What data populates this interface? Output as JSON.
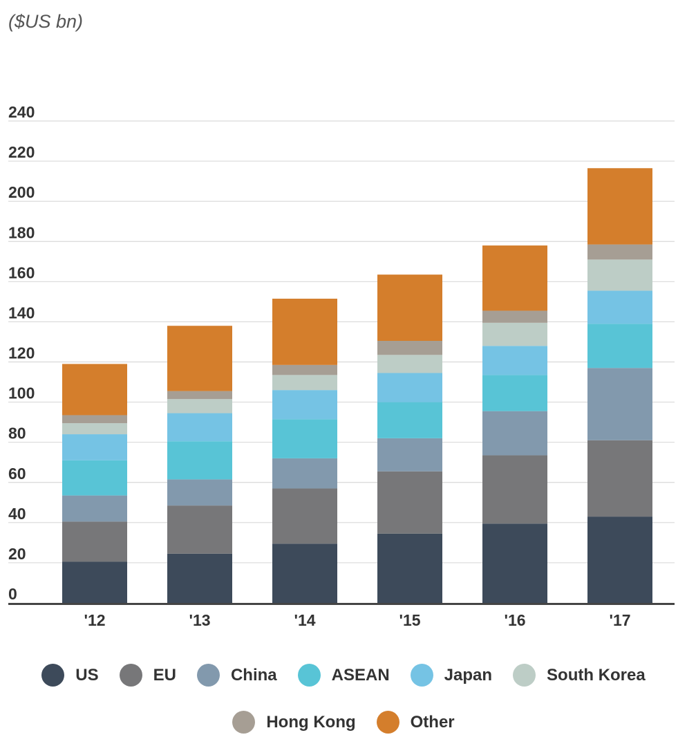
{
  "unit_label": "($US bn)",
  "chart_data": {
    "type": "bar",
    "stacked": true,
    "title": "",
    "xlabel": "",
    "ylabel": "($US bn)",
    "categories": [
      "'12",
      "'13",
      "'14",
      "'15",
      "'16",
      "'17"
    ],
    "ylim": [
      0,
      240
    ],
    "yticks": [
      0,
      20,
      40,
      60,
      80,
      100,
      120,
      140,
      160,
      180,
      200,
      220,
      240
    ],
    "grid": true,
    "legend_position": "bottom",
    "series": [
      {
        "name": "US",
        "color": "#3d4a5a",
        "values": [
          20.5,
          24.5,
          29.5,
          34.5,
          39.5,
          43
        ]
      },
      {
        "name": "EU",
        "color": "#777779",
        "values": [
          20,
          24,
          27.5,
          31,
          34,
          38
        ]
      },
      {
        "name": "China",
        "color": "#8299ad",
        "values": [
          13,
          13,
          15,
          16.5,
          22,
          36
        ]
      },
      {
        "name": "ASEAN",
        "color": "#58c4d6",
        "values": [
          17.5,
          19,
          19.5,
          18,
          18,
          22
        ]
      },
      {
        "name": "Japan",
        "color": "#75c3e4",
        "values": [
          13,
          14,
          14.5,
          14.5,
          14.5,
          16.5
        ]
      },
      {
        "name": "South Korea",
        "color": "#bdcdc6",
        "values": [
          5.5,
          7,
          7.5,
          9,
          11.5,
          15.5
        ]
      },
      {
        "name": "Hong Kong",
        "color": "#a69e94",
        "values": [
          4,
          4,
          5,
          7,
          6,
          7.5
        ]
      },
      {
        "name": "Other",
        "color": "#d47e2c",
        "values": [
          25.5,
          32.5,
          33,
          33,
          32.5,
          38
        ]
      }
    ]
  }
}
